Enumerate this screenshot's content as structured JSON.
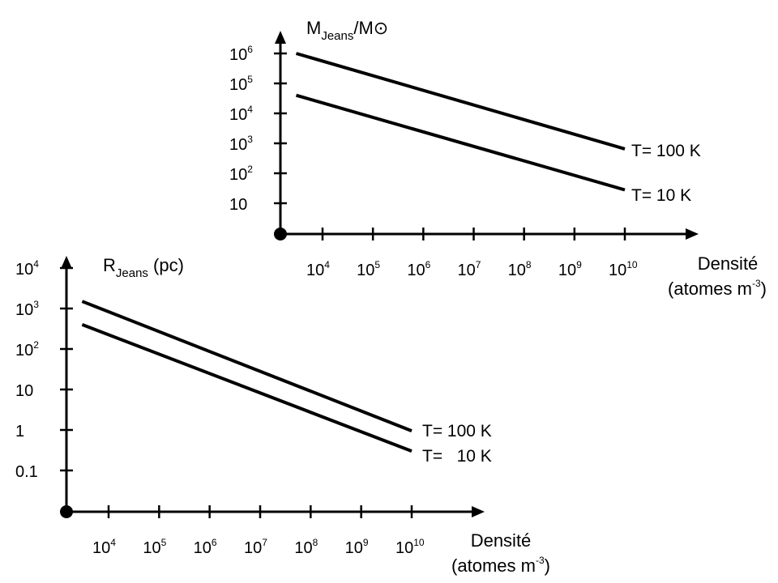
{
  "chart_data": [
    {
      "type": "line",
      "title": "",
      "ylabel": {
        "base": "M",
        "sub": "Jeans",
        "tail": "/M⊙"
      },
      "xlabel": {
        "line1": "Densité",
        "line2_pre": "(atomes m",
        "line2_sup": "-3",
        "line2_post": ")"
      },
      "x_scale": "log",
      "y_scale": "log",
      "x_ticks": [
        {
          "base": "10",
          "exp": "4",
          "value": 10000.0
        },
        {
          "base": "10",
          "exp": "5",
          "value": 100000.0
        },
        {
          "base": "10",
          "exp": "6",
          "value": 1000000.0
        },
        {
          "base": "10",
          "exp": "7",
          "value": 10000000.0
        },
        {
          "base": "10",
          "exp": "8",
          "value": 100000000.0
        },
        {
          "base": "10",
          "exp": "9",
          "value": 1000000000.0
        },
        {
          "base": "10",
          "exp": "10",
          "value": 10000000000.0
        }
      ],
      "y_ticks": [
        {
          "base": "10",
          "exp": "",
          "value": 10
        },
        {
          "base": "10",
          "exp": "2",
          "value": 100
        },
        {
          "base": "10",
          "exp": "3",
          "value": 1000
        },
        {
          "base": "10",
          "exp": "4",
          "value": 10000
        },
        {
          "base": "10",
          "exp": "5",
          "value": 100000
        },
        {
          "base": "10",
          "exp": "6",
          "value": 1000000
        }
      ],
      "series": [
        {
          "name": "T= 100 K",
          "x": [
            3000.0,
            10000000000.0
          ],
          "y": [
            1000000,
            650
          ]
        },
        {
          "name": "T= 10 K",
          "x": [
            3000.0,
            10000000000.0
          ],
          "y": [
            40000,
            28
          ]
        }
      ]
    },
    {
      "type": "line",
      "title": "",
      "ylabel": {
        "base": "R",
        "sub": "Jeans",
        "tail": " (pc)"
      },
      "xlabel": {
        "line1": "Densité",
        "line2_pre": "(atomes m",
        "line2_sup": "-3",
        "line2_post": ")"
      },
      "x_scale": "log",
      "y_scale": "log",
      "x_ticks": [
        {
          "base": "10",
          "exp": "4",
          "value": 10000.0
        },
        {
          "base": "10",
          "exp": "5",
          "value": 100000.0
        },
        {
          "base": "10",
          "exp": "6",
          "value": 1000000.0
        },
        {
          "base": "10",
          "exp": "7",
          "value": 10000000.0
        },
        {
          "base": "10",
          "exp": "8",
          "value": 100000000.0
        },
        {
          "base": "10",
          "exp": "9",
          "value": 1000000000.0
        },
        {
          "base": "10",
          "exp": "10",
          "value": 10000000000.0
        }
      ],
      "y_ticks": [
        {
          "base": "0.1",
          "exp": "",
          "value": 0.1
        },
        {
          "base": "1",
          "exp": "",
          "value": 1
        },
        {
          "base": "10",
          "exp": "",
          "value": 10
        },
        {
          "base": "10",
          "exp": "2",
          "value": 100
        },
        {
          "base": "10",
          "exp": "3",
          "value": 1000
        },
        {
          "base": "10",
          "exp": "4",
          "value": 10000
        }
      ],
      "series": [
        {
          "name": "T= 100 K",
          "x": [
            3000.0,
            10000000000.0
          ],
          "y": [
            1500,
            0.95
          ]
        },
        {
          "name": "T=   10 K",
          "x": [
            3000.0,
            10000000000.0
          ],
          "y": [
            400,
            0.3
          ]
        }
      ]
    }
  ]
}
